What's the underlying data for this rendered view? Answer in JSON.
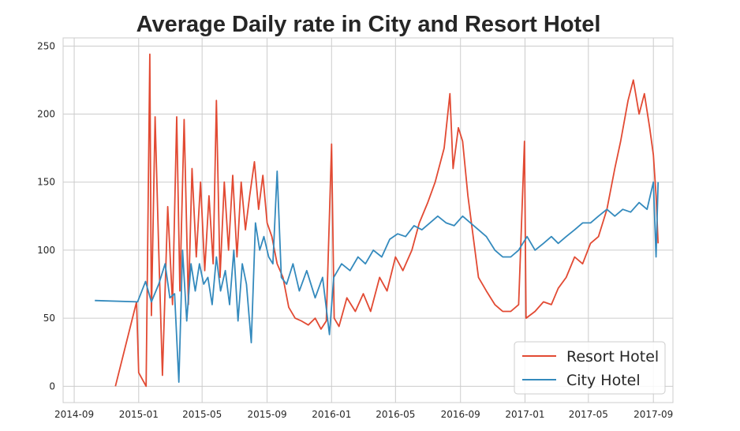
{
  "chart_data": {
    "type": "line",
    "title": "Average Daily rate in City and Resort Hotel",
    "xlabel": "",
    "ylabel": "",
    "x_ticks": [
      "2014-09",
      "2015-01",
      "2015-05",
      "2015-09",
      "2016-01",
      "2016-05",
      "2016-09",
      "2017-01",
      "2017-05",
      "2017-09"
    ],
    "y_ticks": [
      0,
      50,
      100,
      150,
      200,
      250
    ],
    "xlim": [
      "2014-08-11",
      "2017-10-08"
    ],
    "ylim": [
      -12,
      256
    ],
    "grid": true,
    "legend_position": "lower-right",
    "colors": {
      "resort": "#e24a33",
      "city": "#348abd",
      "grid": "#cccccc",
      "axes": "#cccccc"
    },
    "series": [
      {
        "name": "Resort Hotel",
        "color": "#e24a33",
        "points": [
          [
            "2014-11-18",
            0
          ],
          [
            "2014-12-28",
            62
          ],
          [
            "2015-01-01",
            10
          ],
          [
            "2015-01-15",
            0
          ],
          [
            "2015-01-22",
            244
          ],
          [
            "2015-01-25",
            52
          ],
          [
            "2015-02-01",
            198
          ],
          [
            "2015-02-08",
            100
          ],
          [
            "2015-02-15",
            8
          ],
          [
            "2015-02-25",
            132
          ],
          [
            "2015-03-06",
            60
          ],
          [
            "2015-03-14",
            198
          ],
          [
            "2015-03-20",
            70
          ],
          [
            "2015-03-28",
            196
          ],
          [
            "2015-04-05",
            60
          ],
          [
            "2015-04-12",
            160
          ],
          [
            "2015-04-20",
            95
          ],
          [
            "2015-04-28",
            150
          ],
          [
            "2015-05-06",
            85
          ],
          [
            "2015-05-14",
            140
          ],
          [
            "2015-05-22",
            90
          ],
          [
            "2015-05-28",
            210
          ],
          [
            "2015-06-04",
            80
          ],
          [
            "2015-06-12",
            150
          ],
          [
            "2015-06-20",
            100
          ],
          [
            "2015-06-28",
            155
          ],
          [
            "2015-07-06",
            95
          ],
          [
            "2015-07-14",
            150
          ],
          [
            "2015-07-22",
            115
          ],
          [
            "2015-07-30",
            140
          ],
          [
            "2015-08-08",
            165
          ],
          [
            "2015-08-16",
            130
          ],
          [
            "2015-08-24",
            155
          ],
          [
            "2015-09-01",
            120
          ],
          [
            "2015-09-10",
            110
          ],
          [
            "2015-09-20",
            90
          ],
          [
            "2015-10-01",
            80
          ],
          [
            "2015-10-12",
            58
          ],
          [
            "2015-10-24",
            50
          ],
          [
            "2015-11-05",
            48
          ],
          [
            "2015-11-18",
            45
          ],
          [
            "2015-12-01",
            50
          ],
          [
            "2015-12-12",
            42
          ],
          [
            "2015-12-22",
            48
          ],
          [
            "2016-01-01",
            178
          ],
          [
            "2016-01-06",
            50
          ],
          [
            "2016-01-15",
            44
          ],
          [
            "2016-01-30",
            65
          ],
          [
            "2016-02-15",
            55
          ],
          [
            "2016-03-01",
            68
          ],
          [
            "2016-03-15",
            55
          ],
          [
            "2016-04-01",
            80
          ],
          [
            "2016-04-15",
            70
          ],
          [
            "2016-05-01",
            95
          ],
          [
            "2016-05-15",
            85
          ],
          [
            "2016-06-01",
            100
          ],
          [
            "2016-06-15",
            120
          ],
          [
            "2016-07-01",
            135
          ],
          [
            "2016-07-15",
            150
          ],
          [
            "2016-08-01",
            175
          ],
          [
            "2016-08-12",
            215
          ],
          [
            "2016-08-18",
            160
          ],
          [
            "2016-08-28",
            190
          ],
          [
            "2016-09-05",
            180
          ],
          [
            "2016-09-15",
            140
          ],
          [
            "2016-09-25",
            110
          ],
          [
            "2016-10-05",
            80
          ],
          [
            "2016-10-20",
            70
          ],
          [
            "2016-11-05",
            60
          ],
          [
            "2016-11-20",
            55
          ],
          [
            "2016-12-05",
            55
          ],
          [
            "2016-12-20",
            60
          ],
          [
            "2016-12-31",
            180
          ],
          [
            "2017-01-03",
            50
          ],
          [
            "2017-01-20",
            55
          ],
          [
            "2017-02-05",
            62
          ],
          [
            "2017-02-20",
            60
          ],
          [
            "2017-03-05",
            72
          ],
          [
            "2017-03-20",
            80
          ],
          [
            "2017-04-05",
            95
          ],
          [
            "2017-04-20",
            90
          ],
          [
            "2017-05-05",
            105
          ],
          [
            "2017-05-20",
            110
          ],
          [
            "2017-06-05",
            130
          ],
          [
            "2017-06-20",
            160
          ],
          [
            "2017-07-01",
            180
          ],
          [
            "2017-07-15",
            210
          ],
          [
            "2017-07-25",
            225
          ],
          [
            "2017-08-05",
            200
          ],
          [
            "2017-08-15",
            215
          ],
          [
            "2017-08-25",
            190
          ],
          [
            "2017-09-01",
            170
          ],
          [
            "2017-09-06",
            140
          ],
          [
            "2017-09-10",
            105
          ]
        ]
      },
      {
        "name": "City Hotel",
        "color": "#348abd",
        "points": [
          [
            "2014-10-10",
            63
          ],
          [
            "2014-12-30",
            62
          ],
          [
            "2015-01-14",
            77
          ],
          [
            "2015-01-25",
            62
          ],
          [
            "2015-02-08",
            75
          ],
          [
            "2015-02-20",
            90
          ],
          [
            "2015-03-01",
            65
          ],
          [
            "2015-03-10",
            68
          ],
          [
            "2015-03-18",
            3
          ],
          [
            "2015-03-25",
            100
          ],
          [
            "2015-04-02",
            48
          ],
          [
            "2015-04-10",
            90
          ],
          [
            "2015-04-18",
            70
          ],
          [
            "2015-04-26",
            90
          ],
          [
            "2015-05-04",
            75
          ],
          [
            "2015-05-12",
            80
          ],
          [
            "2015-05-20",
            60
          ],
          [
            "2015-05-28",
            95
          ],
          [
            "2015-06-05",
            70
          ],
          [
            "2015-06-14",
            85
          ],
          [
            "2015-06-22",
            60
          ],
          [
            "2015-06-30",
            100
          ],
          [
            "2015-07-08",
            48
          ],
          [
            "2015-07-16",
            90
          ],
          [
            "2015-07-24",
            75
          ],
          [
            "2015-08-02",
            32
          ],
          [
            "2015-08-10",
            120
          ],
          [
            "2015-08-18",
            100
          ],
          [
            "2015-08-26",
            110
          ],
          [
            "2015-09-04",
            95
          ],
          [
            "2015-09-12",
            90
          ],
          [
            "2015-09-20",
            158
          ],
          [
            "2015-09-28",
            80
          ],
          [
            "2015-10-08",
            75
          ],
          [
            "2015-10-20",
            90
          ],
          [
            "2015-11-01",
            70
          ],
          [
            "2015-11-15",
            85
          ],
          [
            "2015-12-01",
            65
          ],
          [
            "2015-12-15",
            80
          ],
          [
            "2015-12-28",
            38
          ],
          [
            "2016-01-05",
            80
          ],
          [
            "2016-01-20",
            90
          ],
          [
            "2016-02-05",
            85
          ],
          [
            "2016-02-20",
            95
          ],
          [
            "2016-03-05",
            90
          ],
          [
            "2016-03-20",
            100
          ],
          [
            "2016-04-05",
            95
          ],
          [
            "2016-04-20",
            108
          ],
          [
            "2016-05-05",
            112
          ],
          [
            "2016-05-20",
            110
          ],
          [
            "2016-06-05",
            118
          ],
          [
            "2016-06-20",
            115
          ],
          [
            "2016-07-05",
            120
          ],
          [
            "2016-07-20",
            125
          ],
          [
            "2016-08-05",
            120
          ],
          [
            "2016-08-20",
            118
          ],
          [
            "2016-09-05",
            125
          ],
          [
            "2016-09-20",
            120
          ],
          [
            "2016-10-05",
            115
          ],
          [
            "2016-10-20",
            110
          ],
          [
            "2016-11-05",
            100
          ],
          [
            "2016-11-20",
            95
          ],
          [
            "2016-12-05",
            95
          ],
          [
            "2016-12-20",
            100
          ],
          [
            "2017-01-05",
            110
          ],
          [
            "2017-01-20",
            100
          ],
          [
            "2017-02-05",
            105
          ],
          [
            "2017-02-20",
            110
          ],
          [
            "2017-03-05",
            105
          ],
          [
            "2017-03-20",
            110
          ],
          [
            "2017-04-05",
            115
          ],
          [
            "2017-04-20",
            120
          ],
          [
            "2017-05-05",
            120
          ],
          [
            "2017-05-20",
            125
          ],
          [
            "2017-06-05",
            130
          ],
          [
            "2017-06-20",
            125
          ],
          [
            "2017-07-05",
            130
          ],
          [
            "2017-07-20",
            128
          ],
          [
            "2017-08-05",
            135
          ],
          [
            "2017-08-20",
            130
          ],
          [
            "2017-09-01",
            150
          ],
          [
            "2017-09-06",
            95
          ],
          [
            "2017-09-10",
            150
          ]
        ]
      }
    ]
  }
}
